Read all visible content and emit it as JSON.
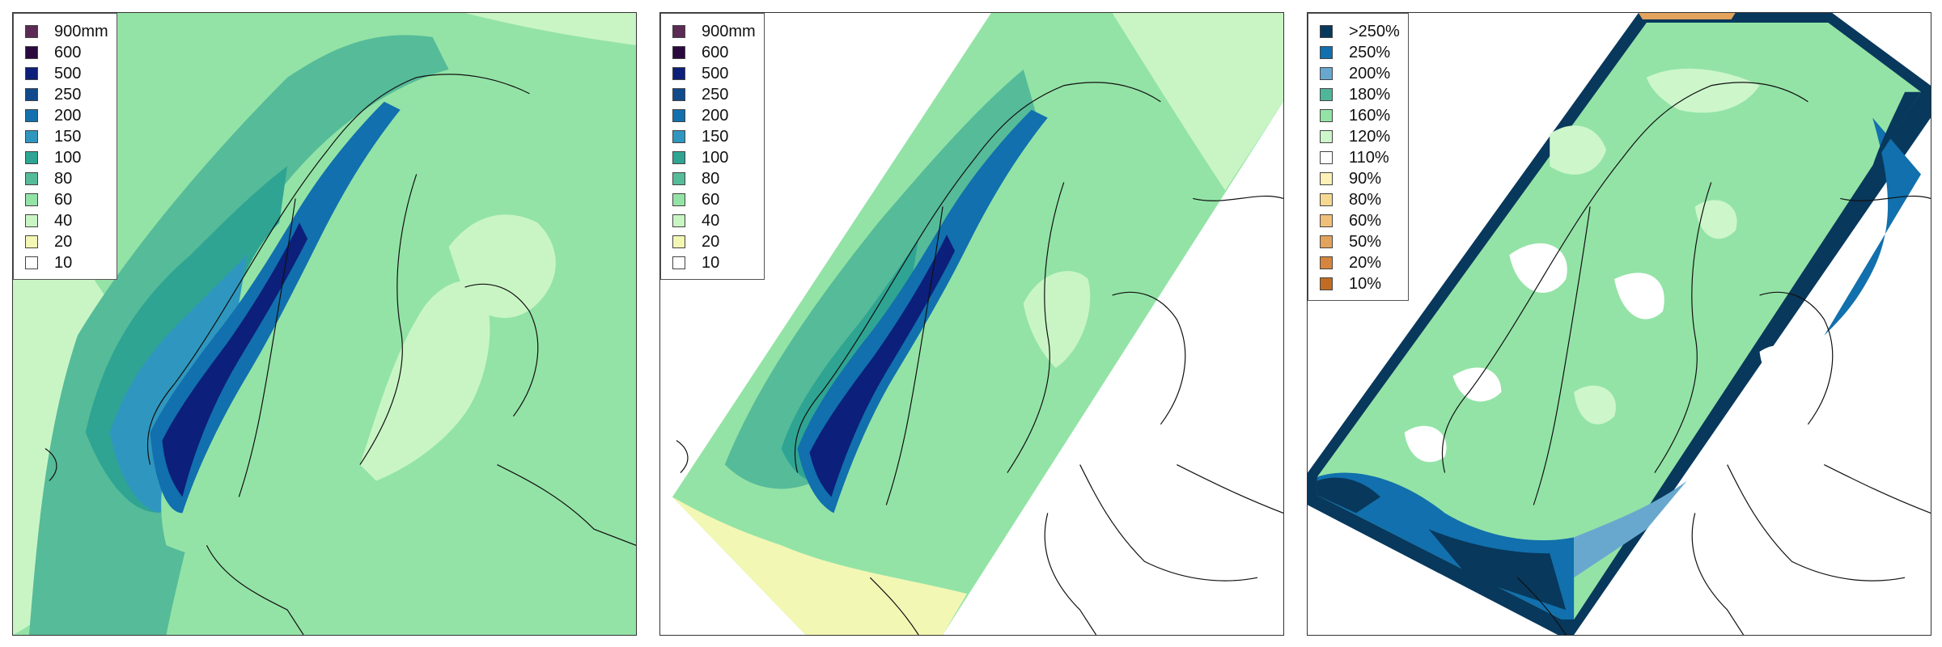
{
  "panels": [
    {
      "id": "precip-full",
      "legend": {
        "items": [
          {
            "label": "900mm",
            "color": "#5b2a55"
          },
          {
            "label": "600",
            "color": "#2a0a3e"
          },
          {
            "label": "500",
            "color": "#0c1f7a"
          },
          {
            "label": "250",
            "color": "#104a8c"
          },
          {
            "label": "200",
            "color": "#1170ad"
          },
          {
            "label": "150",
            "color": "#2f97bf"
          },
          {
            "label": "100",
            "color": "#2fa493"
          },
          {
            "label": "80",
            "color": "#56bb99"
          },
          {
            "label": "60",
            "color": "#93e3a6"
          },
          {
            "label": "40",
            "color": "#c9f5c5"
          },
          {
            "label": "20",
            "color": "#f3f7b4"
          },
          {
            "label": "10",
            "color": "#ffffff"
          }
        ]
      }
    },
    {
      "id": "precip-domain",
      "legend": {
        "items": [
          {
            "label": "900mm",
            "color": "#5b2a55"
          },
          {
            "label": "600",
            "color": "#2a0a3e"
          },
          {
            "label": "500",
            "color": "#0c1f7a"
          },
          {
            "label": "250",
            "color": "#104a8c"
          },
          {
            "label": "200",
            "color": "#1170ad"
          },
          {
            "label": "150",
            "color": "#2f97bf"
          },
          {
            "label": "100",
            "color": "#2fa493"
          },
          {
            "label": "80",
            "color": "#56bb99"
          },
          {
            "label": "60",
            "color": "#93e3a6"
          },
          {
            "label": "40",
            "color": "#c9f5c5"
          },
          {
            "label": "20",
            "color": "#f3f7b4"
          },
          {
            "label": "10",
            "color": "#ffffff"
          }
        ]
      }
    },
    {
      "id": "ratio-domain",
      "legend": {
        "items": [
          {
            "label": ">250%",
            "color": "#08385c"
          },
          {
            "label": "250%",
            "color": "#1170ad"
          },
          {
            "label": "200%",
            "color": "#68a8cf"
          },
          {
            "label": "180%",
            "color": "#4fb69a"
          },
          {
            "label": "160%",
            "color": "#93e3a6"
          },
          {
            "label": "120%",
            "color": "#cdf6cb"
          },
          {
            "label": "110%",
            "color": "#ffffff"
          },
          {
            "label": "90%",
            "color": "#fdf1b8"
          },
          {
            "label": "80%",
            "color": "#f7d891"
          },
          {
            "label": "60%",
            "color": "#f0c079"
          },
          {
            "label": "50%",
            "color": "#e3a35d"
          },
          {
            "label": "20%",
            "color": "#d5853d"
          },
          {
            "label": "10%",
            "color": "#c06d23"
          }
        ]
      }
    }
  ]
}
